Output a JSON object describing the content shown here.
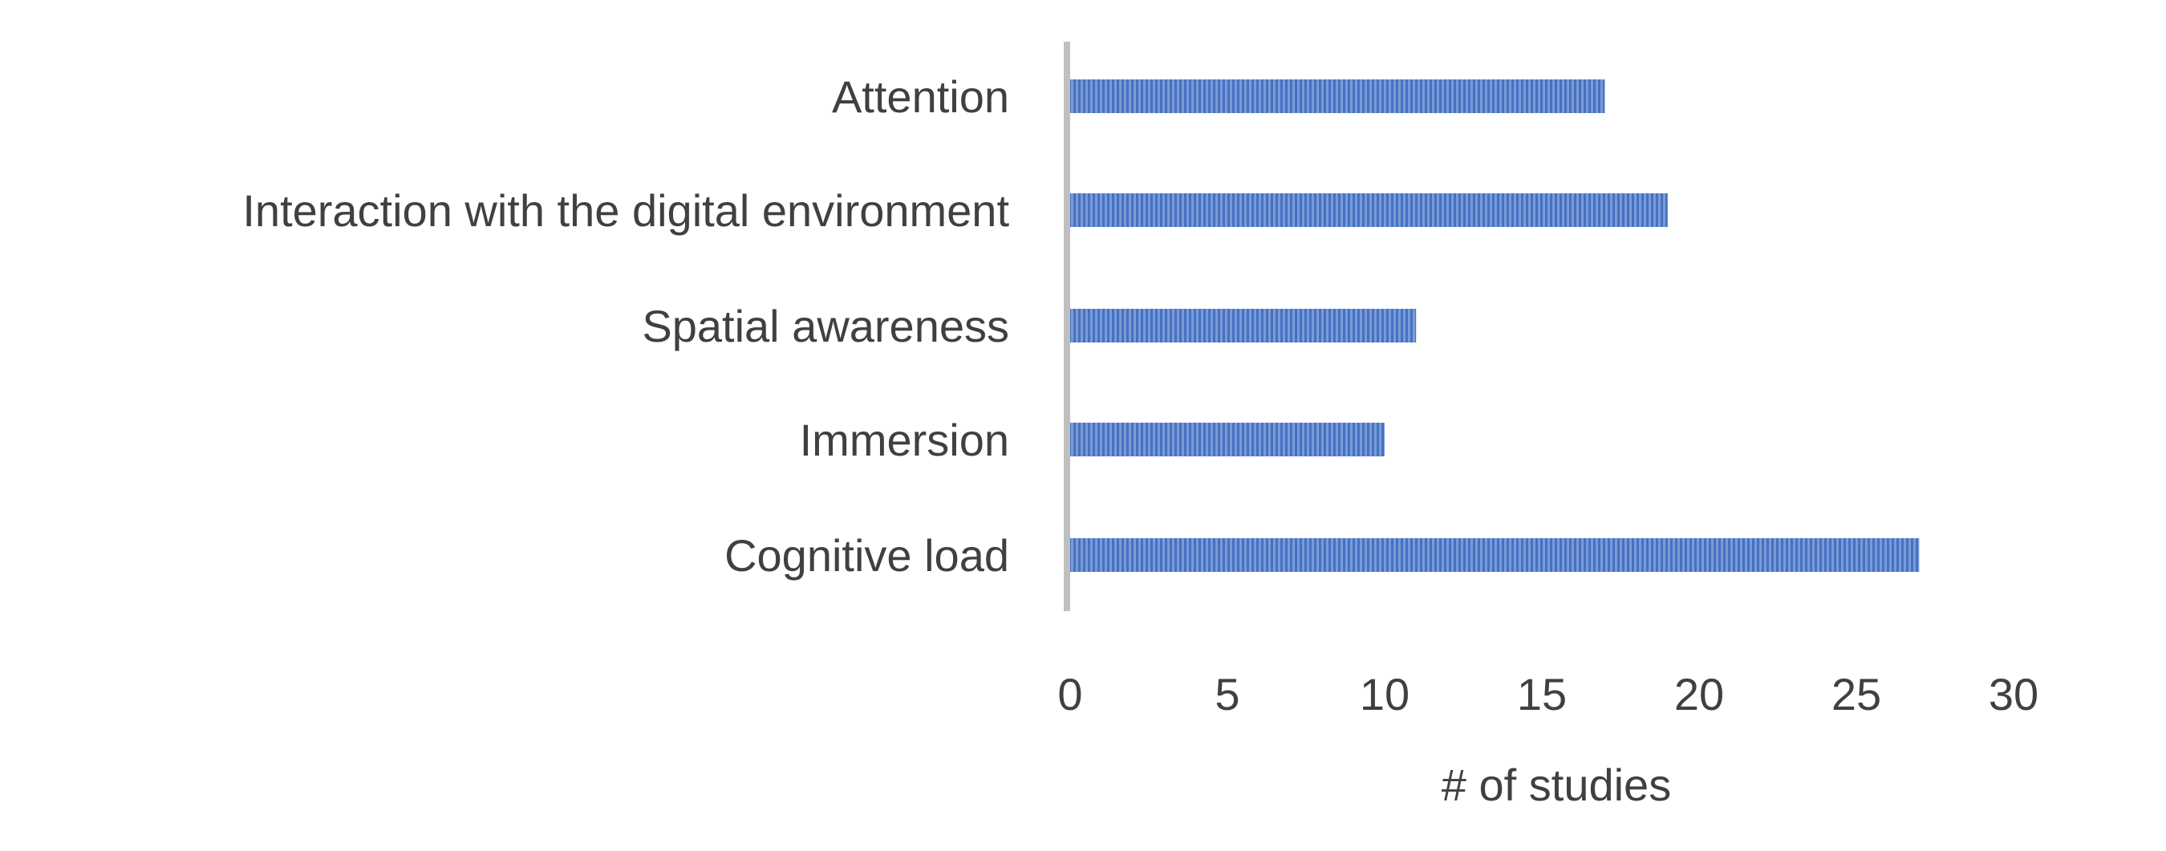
{
  "chart_data": {
    "type": "bar",
    "orientation": "horizontal",
    "categories": [
      "Attention",
      "Interaction with the digital  environment",
      "Spatial awareness",
      "Immersion",
      "Cognitive load"
    ],
    "values": [
      17,
      19,
      11,
      10,
      27
    ],
    "xlabel": "# of studies",
    "xlim": [
      0,
      30
    ],
    "xticks": [
      0,
      5,
      10,
      15,
      20,
      25,
      30
    ],
    "grid": false,
    "legend": "none",
    "bar_color": "#4472C4"
  }
}
